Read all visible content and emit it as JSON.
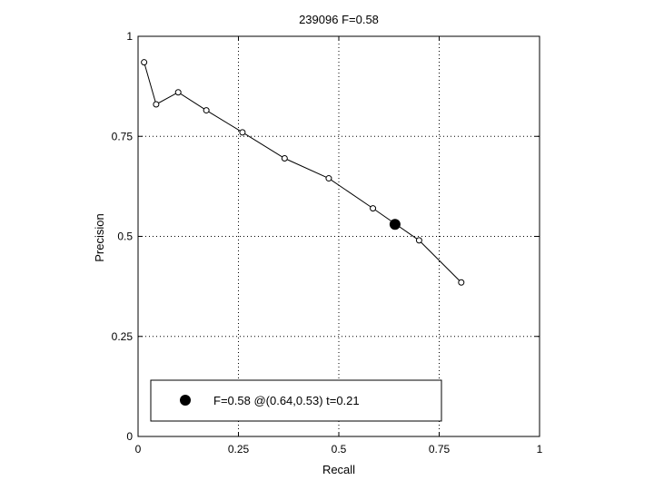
{
  "chart_data": {
    "type": "line",
    "title": "239096 F=0.58",
    "xlabel": "Recall",
    "ylabel": "Precision",
    "xlim": [
      0,
      1
    ],
    "ylim": [
      0,
      1
    ],
    "xticks": [
      "0",
      "0.25",
      "0.5",
      "0.75",
      "1"
    ],
    "yticks": [
      "0",
      "0.25",
      "0.5",
      "0.75",
      "1"
    ],
    "grid": true,
    "grid_style": "dotted",
    "series": [
      {
        "marker": "open-circle",
        "color": "#000000",
        "x": [
          0.015,
          0.045,
          0.1,
          0.17,
          0.26,
          0.365,
          0.475,
          0.585,
          0.7,
          0.805
        ],
        "y": [
          0.935,
          0.83,
          0.86,
          0.815,
          0.76,
          0.695,
          0.645,
          0.57,
          0.49,
          0.385
        ]
      }
    ],
    "best_point": {
      "x": 0.64,
      "y": 0.53,
      "marker": "filled-circle",
      "color": "#000000"
    },
    "legend": {
      "position": "bottom-left",
      "entries": [
        {
          "label": "F=0.58 @(0.64,0.53) t=0.21",
          "marker": "filled-circle"
        }
      ]
    }
  }
}
